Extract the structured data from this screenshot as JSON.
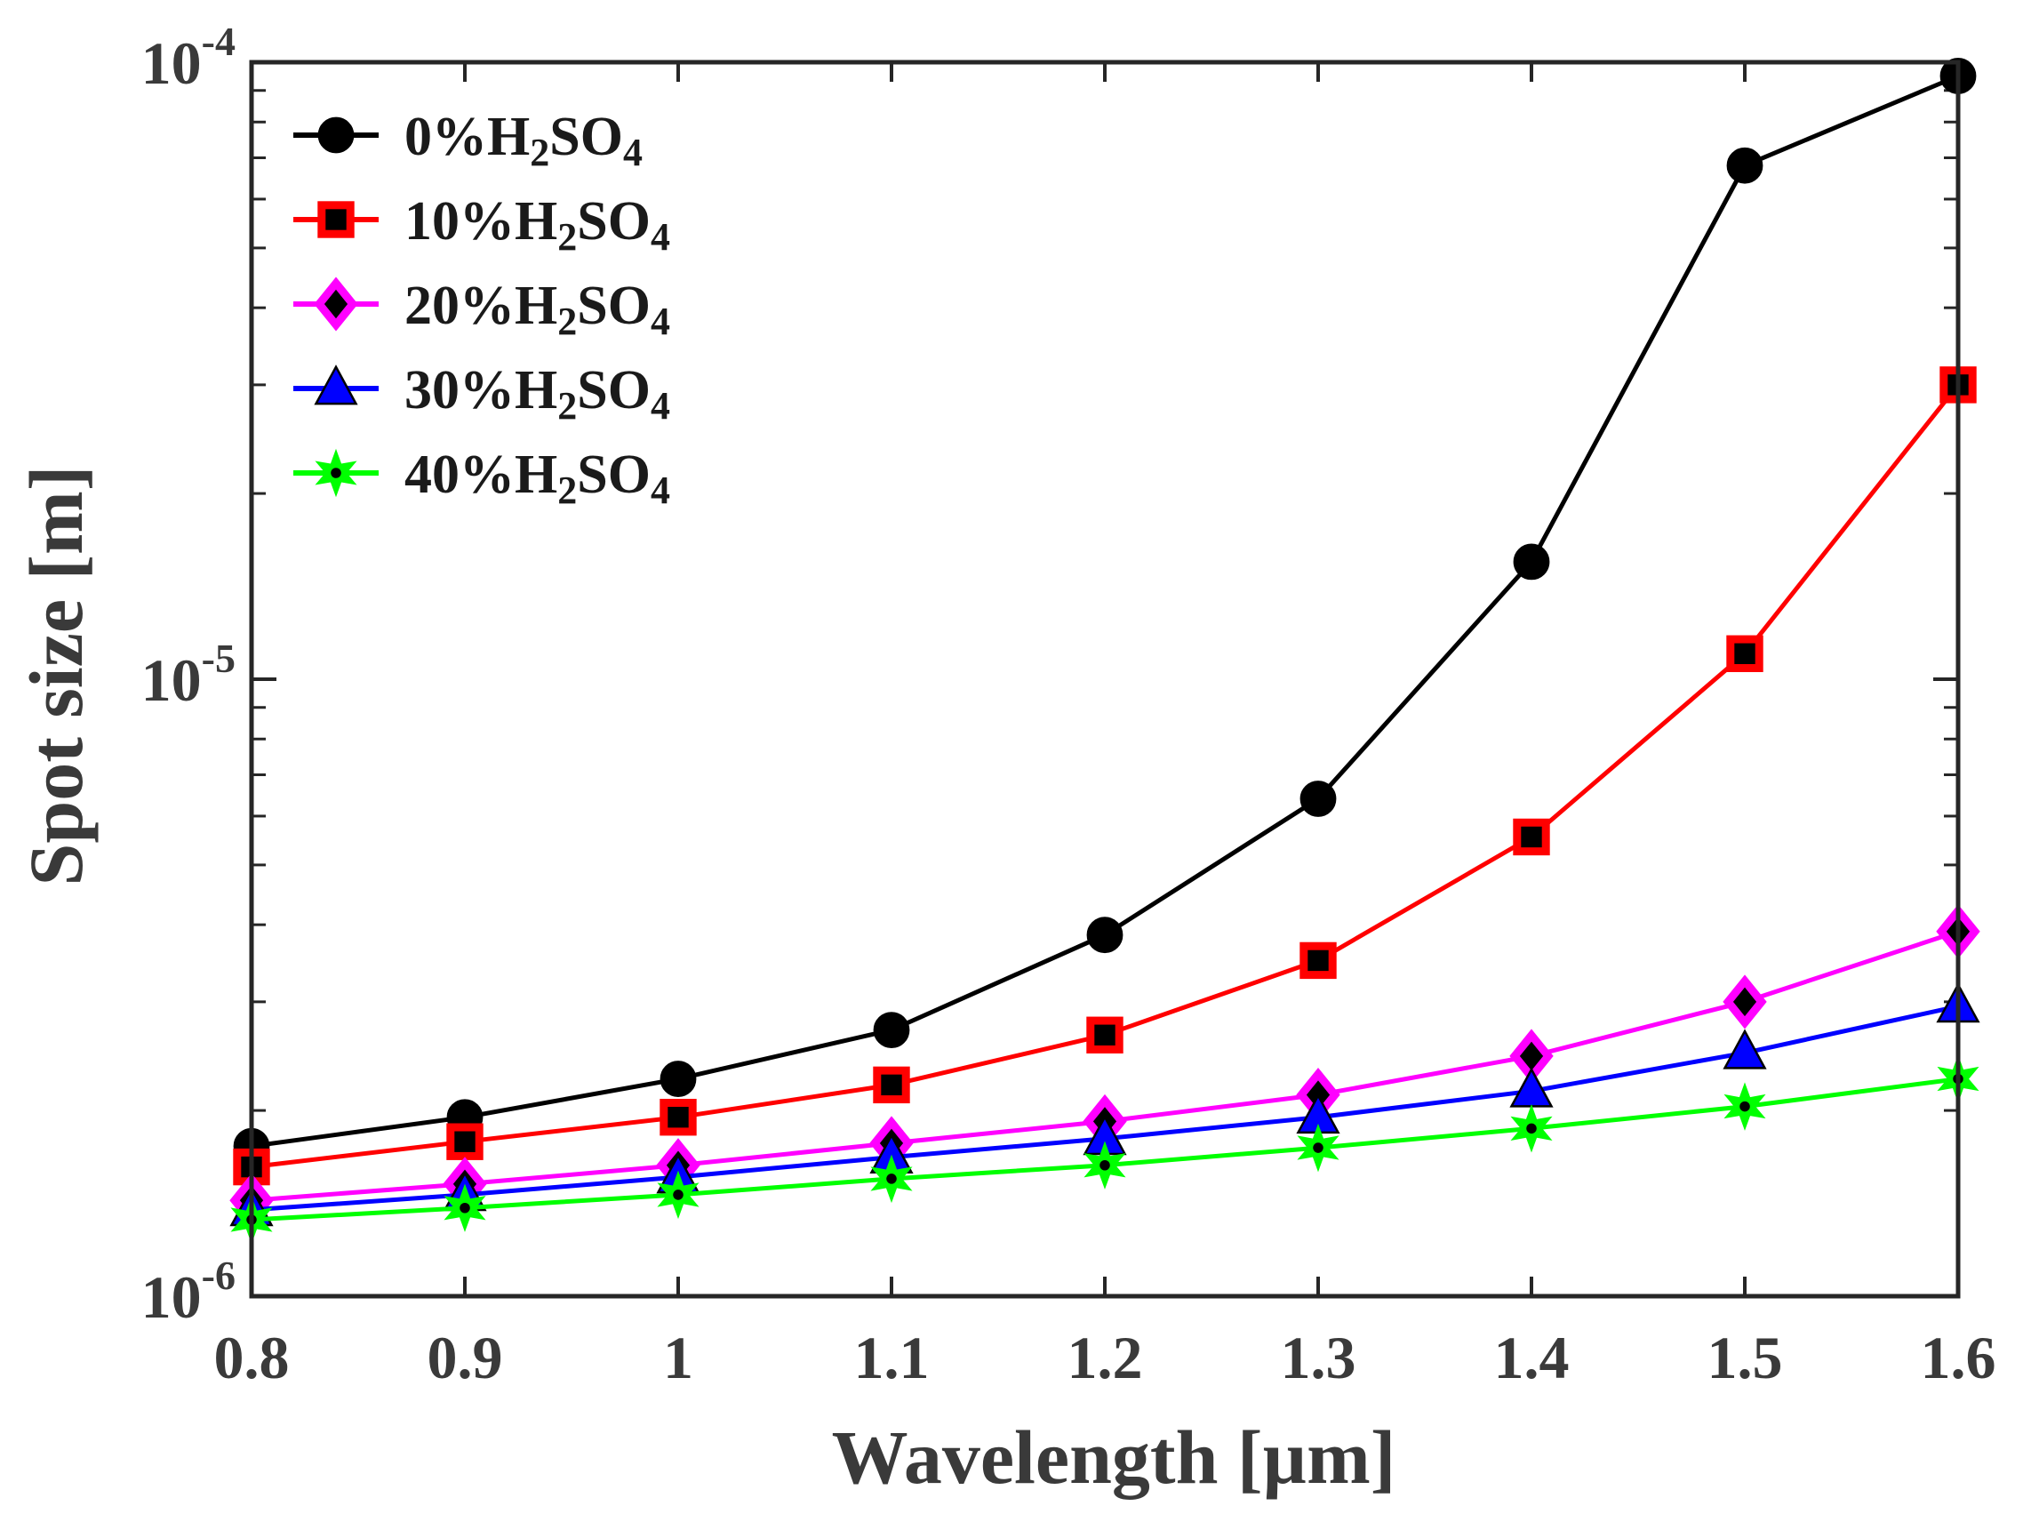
{
  "chart_data": {
    "type": "line",
    "xlabel": "Wavelength [µm]",
    "ylabel": "Spot size [m]",
    "xlim": [
      0.8,
      1.6
    ],
    "ylim": [
      1e-06,
      0.0001
    ],
    "yscale": "log",
    "x": [
      0.8,
      0.9,
      1.0,
      1.1,
      1.2,
      1.3,
      1.4,
      1.5,
      1.6
    ],
    "x_tick_labels": [
      "0.8",
      "0.9",
      "1",
      "1.1",
      "1.2",
      "1.3",
      "1.4",
      "1.5",
      "1.6"
    ],
    "y_tick_labels": [
      {
        "value": 1e-06,
        "base": "10",
        "exp": "-6"
      },
      {
        "value": 1e-05,
        "base": "10",
        "exp": "-5"
      },
      {
        "value": 0.0001,
        "base": "10",
        "exp": "-4"
      }
    ],
    "grid": false,
    "legend_position": "top-left",
    "series": [
      {
        "name": "0%H2SO4",
        "label_prefix": "0%H",
        "label_mid": "SO",
        "sub1": "2",
        "sub2": "4",
        "color": "#000000",
        "marker": "circle",
        "values": [
          1.75e-06,
          1.95e-06,
          2.25e-06,
          2.7e-06,
          3.85e-06,
          6.4e-06,
          1.55e-05,
          6.8e-05,
          9.5e-05
        ]
      },
      {
        "name": "10%H2SO4",
        "label_prefix": "10%H",
        "label_mid": "SO",
        "sub1": "2",
        "sub2": "4",
        "color": "#ff0000",
        "marker": "square",
        "values": [
          1.62e-06,
          1.78e-06,
          1.95e-06,
          2.2e-06,
          2.65e-06,
          3.5e-06,
          5.55e-06,
          1.1e-05,
          3e-05
        ]
      },
      {
        "name": "20%H2SO4",
        "label_prefix": "20%H",
        "label_mid": "SO",
        "sub1": "2",
        "sub2": "4",
        "color": "#ff00ff",
        "marker": "diamond",
        "values": [
          1.43e-06,
          1.52e-06,
          1.63e-06,
          1.77e-06,
          1.92e-06,
          2.12e-06,
          2.45e-06,
          3e-06,
          3.9e-06
        ]
      },
      {
        "name": "30%H2SO4",
        "label_prefix": "30%H",
        "label_mid": "SO",
        "sub1": "2",
        "sub2": "4",
        "color": "#0000ff",
        "marker": "triangle",
        "values": [
          1.38e-06,
          1.46e-06,
          1.56e-06,
          1.68e-06,
          1.8e-06,
          1.95e-06,
          2.15e-06,
          2.48e-06,
          2.95e-06
        ]
      },
      {
        "name": "40%H2SO4",
        "label_prefix": "40%H",
        "label_mid": "SO",
        "sub1": "2",
        "sub2": "4",
        "color": "#00ff00",
        "marker": "star",
        "values": [
          1.33e-06,
          1.39e-06,
          1.46e-06,
          1.55e-06,
          1.63e-06,
          1.74e-06,
          1.87e-06,
          2.03e-06,
          2.25e-06
        ]
      }
    ]
  }
}
